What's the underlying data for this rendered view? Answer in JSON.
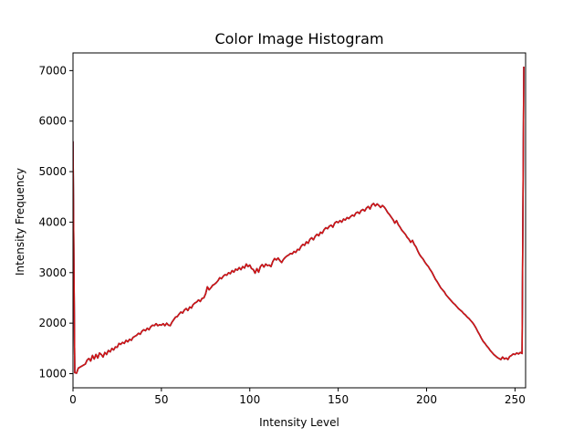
{
  "chart_data": {
    "type": "line",
    "title": "Color Image Histogram",
    "xlabel": "Intensity Level",
    "ylabel": "Intensity Frequency",
    "xlim": [
      0,
      256
    ],
    "ylim": [
      720,
      7350
    ],
    "xticks": [
      0,
      50,
      100,
      150,
      200,
      250
    ],
    "yticks": [
      1000,
      2000,
      3000,
      4000,
      5000,
      6000,
      7000
    ],
    "grid": false,
    "series_colors": [
      "#0b8a0b",
      "#1f3fbf",
      "#d41414"
    ],
    "series": [
      {
        "color": "#d41414",
        "points": [
          [
            0,
            5600
          ],
          [
            0.5,
            3200
          ],
          [
            1,
            1020
          ],
          [
            2,
            1010
          ],
          [
            3,
            1110
          ],
          [
            5,
            1150
          ],
          [
            7,
            1190
          ],
          [
            8,
            1270
          ],
          [
            9,
            1300
          ],
          [
            10,
            1250
          ],
          [
            11,
            1360
          ],
          [
            12,
            1290
          ],
          [
            13,
            1380
          ],
          [
            14,
            1310
          ],
          [
            15,
            1410
          ],
          [
            16,
            1380
          ],
          [
            17,
            1330
          ],
          [
            18,
            1420
          ],
          [
            19,
            1380
          ],
          [
            20,
            1460
          ],
          [
            21,
            1430
          ],
          [
            22,
            1500
          ],
          [
            23,
            1470
          ],
          [
            24,
            1530
          ],
          [
            25,
            1520
          ],
          [
            26,
            1600
          ],
          [
            27,
            1580
          ],
          [
            28,
            1620
          ],
          [
            29,
            1600
          ],
          [
            30,
            1660
          ],
          [
            31,
            1630
          ],
          [
            32,
            1680
          ],
          [
            33,
            1660
          ],
          [
            34,
            1720
          ],
          [
            35,
            1740
          ],
          [
            36,
            1760
          ],
          [
            37,
            1800
          ],
          [
            38,
            1780
          ],
          [
            39,
            1840
          ],
          [
            40,
            1870
          ],
          [
            41,
            1850
          ],
          [
            42,
            1900
          ],
          [
            43,
            1870
          ],
          [
            44,
            1930
          ],
          [
            45,
            1960
          ],
          [
            46,
            1950
          ],
          [
            47,
            1990
          ],
          [
            48,
            1950
          ],
          [
            49,
            1970
          ],
          [
            50,
            1960
          ],
          [
            51,
            1990
          ],
          [
            52,
            1950
          ],
          [
            53,
            2000
          ],
          [
            54,
            1960
          ],
          [
            55,
            1950
          ],
          [
            56,
            2020
          ],
          [
            57,
            2070
          ],
          [
            58,
            2120
          ],
          [
            59,
            2130
          ],
          [
            60,
            2180
          ],
          [
            61,
            2220
          ],
          [
            62,
            2200
          ],
          [
            63,
            2260
          ],
          [
            64,
            2290
          ],
          [
            65,
            2250
          ],
          [
            66,
            2320
          ],
          [
            67,
            2300
          ],
          [
            68,
            2370
          ],
          [
            69,
            2400
          ],
          [
            70,
            2420
          ],
          [
            71,
            2460
          ],
          [
            72,
            2430
          ],
          [
            73,
            2490
          ],
          [
            74,
            2500
          ],
          [
            75,
            2580
          ],
          [
            76,
            2720
          ],
          [
            77,
            2660
          ],
          [
            78,
            2700
          ],
          [
            79,
            2750
          ],
          [
            80,
            2770
          ],
          [
            81,
            2800
          ],
          [
            82,
            2840
          ],
          [
            83,
            2900
          ],
          [
            84,
            2880
          ],
          [
            85,
            2930
          ],
          [
            86,
            2960
          ],
          [
            87,
            2950
          ],
          [
            88,
            3000
          ],
          [
            89,
            2980
          ],
          [
            90,
            3040
          ],
          [
            91,
            3010
          ],
          [
            92,
            3070
          ],
          [
            93,
            3050
          ],
          [
            94,
            3100
          ],
          [
            95,
            3060
          ],
          [
            96,
            3120
          ],
          [
            97,
            3090
          ],
          [
            98,
            3170
          ],
          [
            99,
            3120
          ],
          [
            100,
            3150
          ],
          [
            101,
            3080
          ],
          [
            102,
            3060
          ],
          [
            103,
            2990
          ],
          [
            104,
            3080
          ],
          [
            105,
            3010
          ],
          [
            106,
            3120
          ],
          [
            107,
            3160
          ],
          [
            108,
            3110
          ],
          [
            109,
            3170
          ],
          [
            110,
            3140
          ],
          [
            111,
            3150
          ],
          [
            112,
            3120
          ],
          [
            113,
            3220
          ],
          [
            114,
            3280
          ],
          [
            115,
            3250
          ],
          [
            116,
            3290
          ],
          [
            117,
            3240
          ],
          [
            118,
            3200
          ],
          [
            119,
            3260
          ],
          [
            120,
            3300
          ],
          [
            121,
            3330
          ],
          [
            122,
            3350
          ],
          [
            123,
            3380
          ],
          [
            124,
            3370
          ],
          [
            125,
            3420
          ],
          [
            126,
            3400
          ],
          [
            127,
            3460
          ],
          [
            128,
            3450
          ],
          [
            129,
            3520
          ],
          [
            130,
            3560
          ],
          [
            131,
            3540
          ],
          [
            132,
            3610
          ],
          [
            133,
            3580
          ],
          [
            134,
            3660
          ],
          [
            135,
            3690
          ],
          [
            136,
            3650
          ],
          [
            137,
            3720
          ],
          [
            138,
            3760
          ],
          [
            139,
            3730
          ],
          [
            140,
            3800
          ],
          [
            141,
            3780
          ],
          [
            142,
            3850
          ],
          [
            143,
            3890
          ],
          [
            144,
            3870
          ],
          [
            145,
            3920
          ],
          [
            146,
            3940
          ],
          [
            147,
            3900
          ],
          [
            148,
            3980
          ],
          [
            149,
            4010
          ],
          [
            150,
            3990
          ],
          [
            151,
            4030
          ],
          [
            152,
            4000
          ],
          [
            153,
            4060
          ],
          [
            154,
            4040
          ],
          [
            155,
            4090
          ],
          [
            156,
            4070
          ],
          [
            157,
            4110
          ],
          [
            158,
            4140
          ],
          [
            159,
            4120
          ],
          [
            160,
            4180
          ],
          [
            161,
            4200
          ],
          [
            162,
            4170
          ],
          [
            163,
            4230
          ],
          [
            164,
            4250
          ],
          [
            165,
            4220
          ],
          [
            166,
            4280
          ],
          [
            167,
            4310
          ],
          [
            168,
            4260
          ],
          [
            169,
            4340
          ],
          [
            170,
            4370
          ],
          [
            171,
            4320
          ],
          [
            172,
            4360
          ],
          [
            173,
            4330
          ],
          [
            174,
            4290
          ],
          [
            175,
            4330
          ],
          [
            176,
            4300
          ],
          [
            177,
            4250
          ],
          [
            178,
            4190
          ],
          [
            179,
            4150
          ],
          [
            180,
            4100
          ],
          [
            181,
            4050
          ],
          [
            182,
            3980
          ],
          [
            183,
            4030
          ],
          [
            184,
            3950
          ],
          [
            185,
            3900
          ],
          [
            186,
            3840
          ],
          [
            187,
            3800
          ],
          [
            188,
            3760
          ],
          [
            189,
            3700
          ],
          [
            190,
            3660
          ],
          [
            191,
            3600
          ],
          [
            192,
            3640
          ],
          [
            193,
            3560
          ],
          [
            194,
            3510
          ],
          [
            195,
            3430
          ],
          [
            196,
            3360
          ],
          [
            197,
            3310
          ],
          [
            198,
            3270
          ],
          [
            199,
            3210
          ],
          [
            200,
            3160
          ],
          [
            201,
            3120
          ],
          [
            202,
            3060
          ],
          [
            203,
            3010
          ],
          [
            204,
            2940
          ],
          [
            205,
            2870
          ],
          [
            206,
            2820
          ],
          [
            207,
            2760
          ],
          [
            208,
            2700
          ],
          [
            209,
            2660
          ],
          [
            210,
            2620
          ],
          [
            211,
            2560
          ],
          [
            212,
            2520
          ],
          [
            213,
            2480
          ],
          [
            214,
            2440
          ],
          [
            215,
            2400
          ],
          [
            216,
            2370
          ],
          [
            217,
            2330
          ],
          [
            218,
            2290
          ],
          [
            219,
            2260
          ],
          [
            220,
            2230
          ],
          [
            221,
            2190
          ],
          [
            222,
            2160
          ],
          [
            223,
            2120
          ],
          [
            224,
            2090
          ],
          [
            225,
            2050
          ],
          [
            226,
            2010
          ],
          [
            227,
            1960
          ],
          [
            228,
            1900
          ],
          [
            229,
            1830
          ],
          [
            230,
            1770
          ],
          [
            231,
            1700
          ],
          [
            232,
            1640
          ],
          [
            233,
            1600
          ],
          [
            234,
            1550
          ],
          [
            235,
            1510
          ],
          [
            236,
            1460
          ],
          [
            237,
            1420
          ],
          [
            238,
            1380
          ],
          [
            239,
            1350
          ],
          [
            240,
            1320
          ],
          [
            241,
            1300
          ],
          [
            242,
            1280
          ],
          [
            243,
            1330
          ],
          [
            244,
            1290
          ],
          [
            245,
            1310
          ],
          [
            246,
            1280
          ],
          [
            247,
            1340
          ],
          [
            248,
            1360
          ],
          [
            249,
            1390
          ],
          [
            250,
            1380
          ],
          [
            251,
            1410
          ],
          [
            252,
            1390
          ],
          [
            253,
            1420
          ],
          [
            254,
            1400
          ],
          [
            255,
            7080
          ]
        ]
      }
    ]
  }
}
